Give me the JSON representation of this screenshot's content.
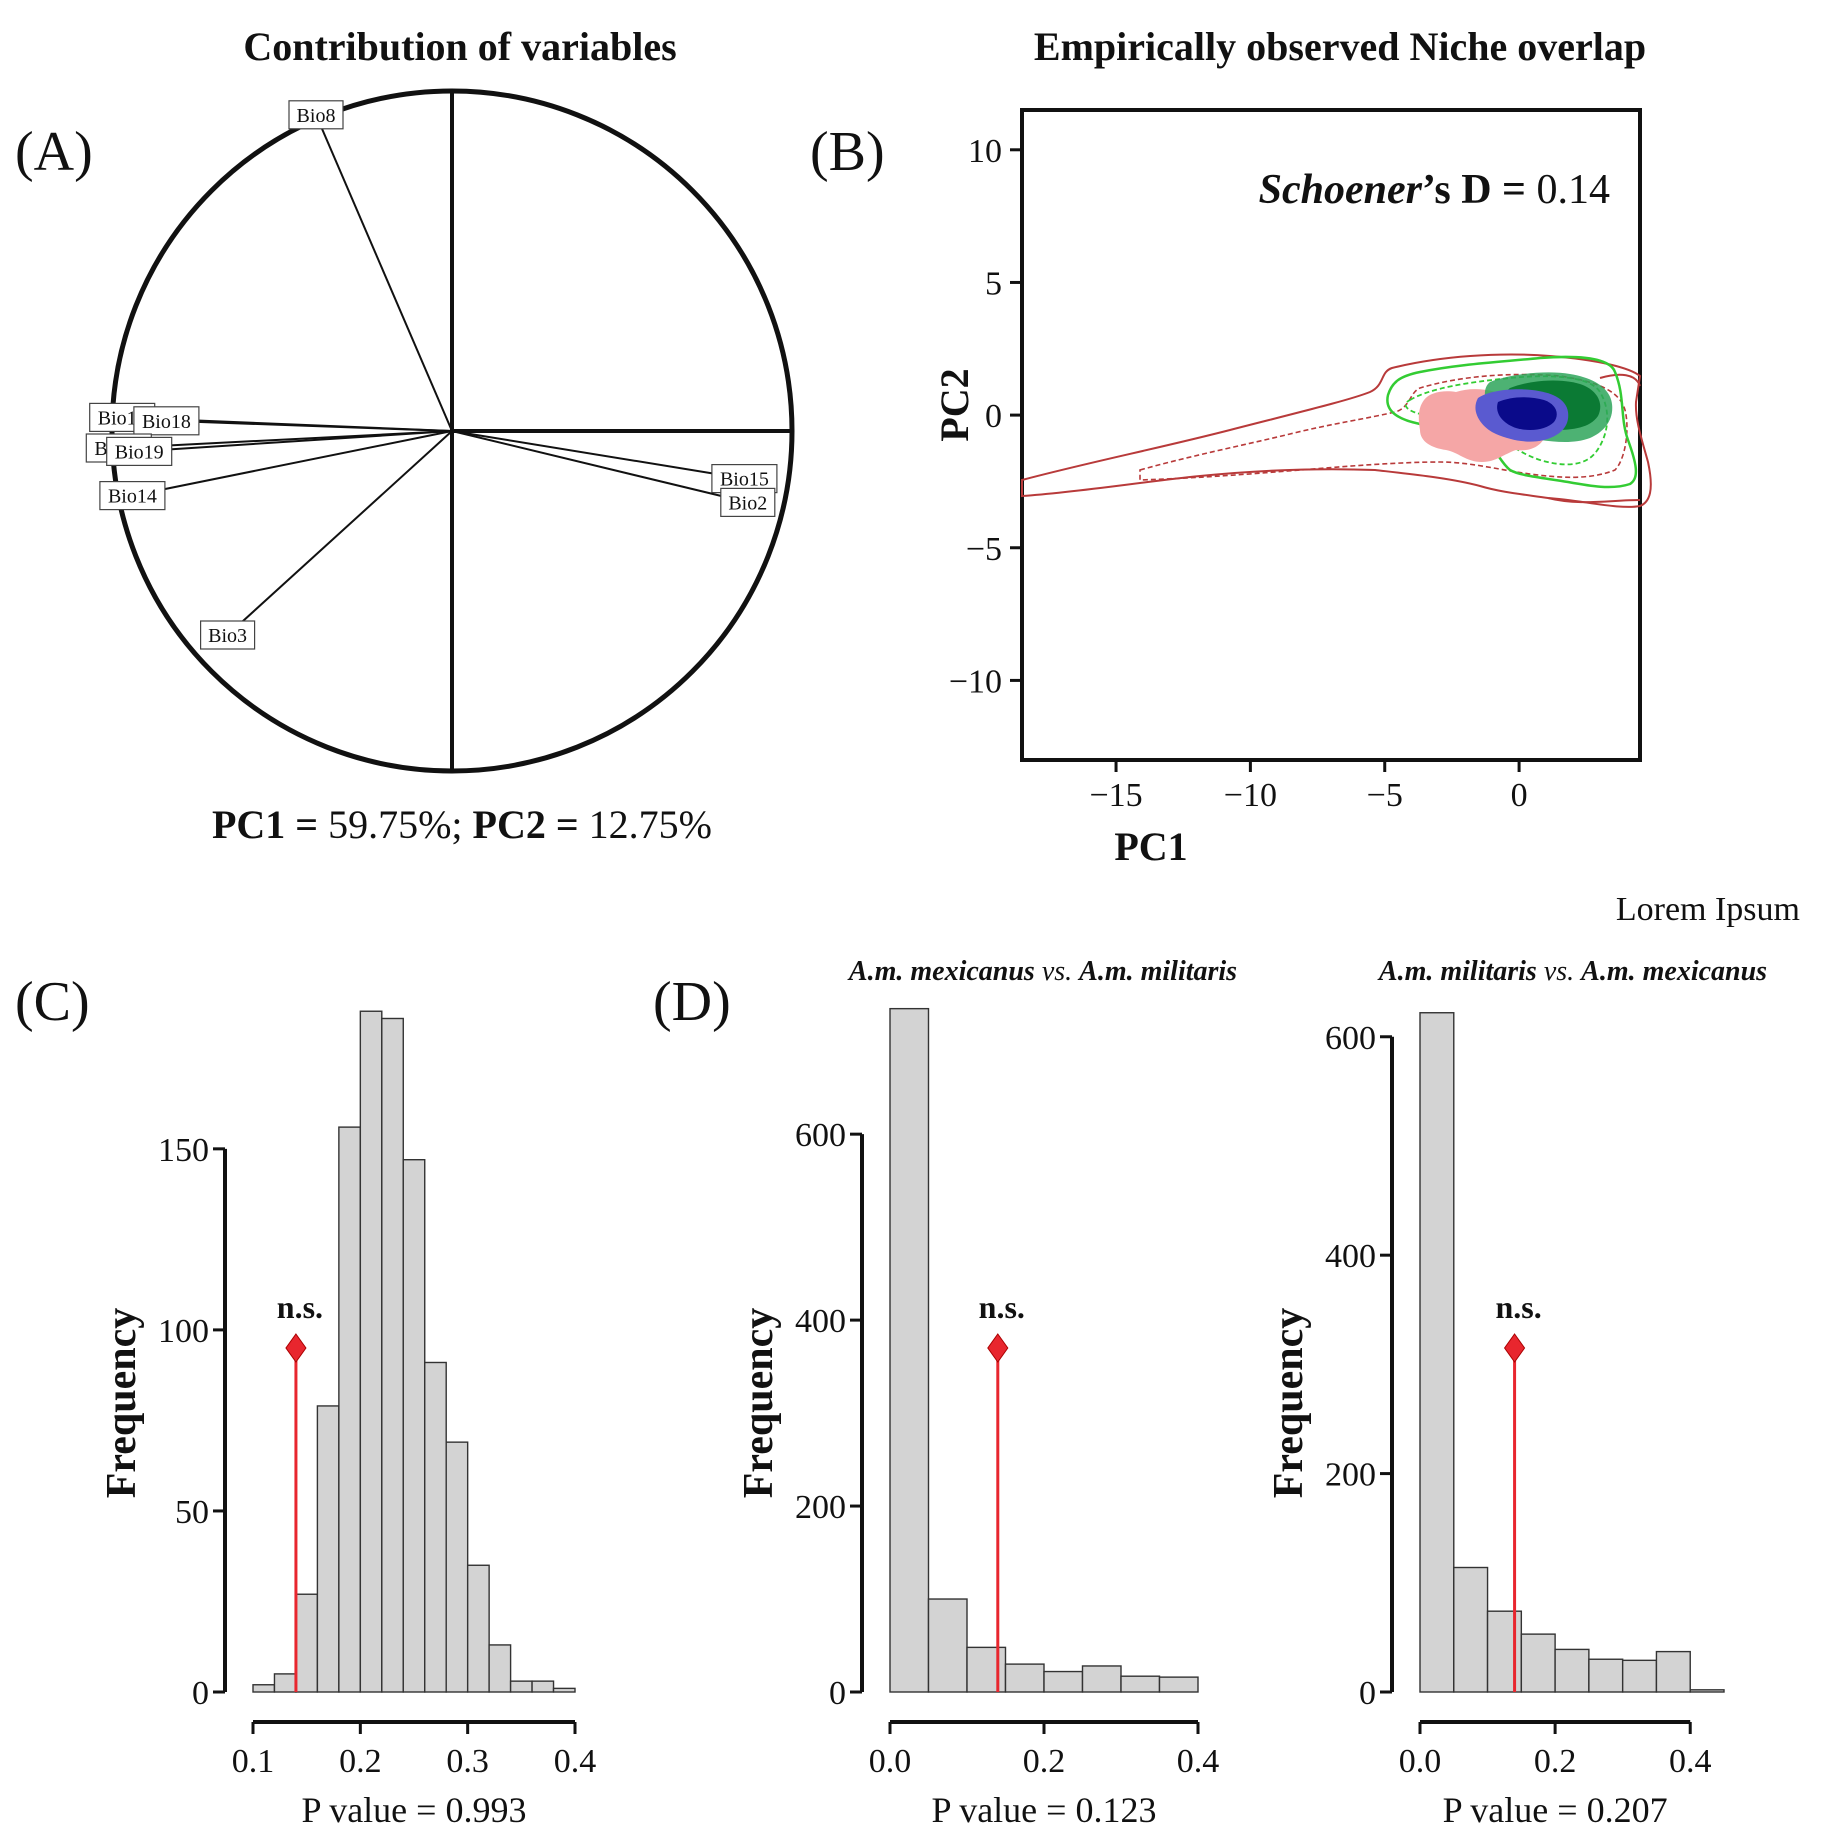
{
  "panels": {
    "A": {
      "letter": "(A)",
      "title": "Contribution of variables",
      "summary": {
        "pc1_label": "PC1 =",
        "pc1_value": "59.75%;",
        "pc2_label": "PC2 =",
        "pc2_value": "12.75%"
      }
    },
    "B": {
      "letter": "(B)",
      "title": "Empirically observed Niche overlap",
      "stat": {
        "name": "Schoener",
        "suffix": "’s D =",
        "value": "0.14"
      }
    },
    "C": {
      "letter": "(C)"
    },
    "D": {
      "letter": "(D)",
      "caption": "Lorem Ipsum"
    }
  },
  "colors": {
    "bar_fill": "#d3d3d3",
    "marker": "#e8262e",
    "red_contour": "#b83a3a",
    "green_contour": "#33cc33",
    "blue_density": "#0a0a8a",
    "green_density": "#118a3a",
    "pink_density": "#f5a6a6"
  },
  "chart_data": [
    {
      "type": "correlation_circle",
      "panel": "A",
      "title": "Contribution of variables",
      "variables": [
        {
          "name": "Bio8",
          "x": -0.4,
          "y": 0.93
        },
        {
          "name": "Bio13",
          "x": -0.97,
          "y": 0.04
        },
        {
          "name": "Bio18",
          "x": -0.84,
          "y": 0.03
        },
        {
          "name": "Bio12",
          "x": -0.98,
          "y": -0.05
        },
        {
          "name": "Bio19",
          "x": -0.92,
          "y": -0.06
        },
        {
          "name": "Bio14",
          "x": -0.94,
          "y": -0.19
        },
        {
          "name": "Bio15",
          "x": 0.86,
          "y": -0.14
        },
        {
          "name": "Bio2",
          "x": 0.87,
          "y": -0.21
        },
        {
          "name": "Bio3",
          "x": -0.66,
          "y": -0.6
        }
      ],
      "pc1_variance": "59.75%",
      "pc2_variance": "12.75%"
    },
    {
      "type": "niche_density",
      "panel": "B",
      "title": "Empirically observed Niche overlap",
      "xlabel": "PC1",
      "ylabel": "PC2",
      "xlim": [
        -18.5,
        4.5
      ],
      "ylim": [
        -13,
        11.5
      ],
      "xticks": [
        -15,
        -10,
        -5,
        0
      ],
      "yticks": [
        -10,
        -5,
        0,
        5,
        10
      ],
      "schoeners_d": 0.14
    },
    {
      "type": "bar",
      "panel": "C",
      "xlabel": "P value = 0.993",
      "ylabel": "Frequency",
      "bins": [
        [
          0.1,
          0.12
        ],
        [
          0.12,
          0.14
        ],
        [
          0.14,
          0.16
        ],
        [
          0.16,
          0.18
        ],
        [
          0.18,
          0.2
        ],
        [
          0.2,
          0.22
        ],
        [
          0.22,
          0.24
        ],
        [
          0.24,
          0.26
        ],
        [
          0.26,
          0.28
        ],
        [
          0.28,
          0.3
        ],
        [
          0.3,
          0.32
        ],
        [
          0.32,
          0.34
        ],
        [
          0.34,
          0.36
        ],
        [
          0.36,
          0.38
        ],
        [
          0.38,
          0.4
        ]
      ],
      "values": [
        2,
        5,
        27,
        79,
        156,
        188,
        186,
        147,
        91,
        69,
        35,
        13,
        3,
        3,
        1
      ],
      "xlim": [
        0.1,
        0.4
      ],
      "ylim": [
        0,
        190
      ],
      "xticks": [
        0.1,
        0.2,
        0.3,
        0.4
      ],
      "yticks": [
        0,
        50,
        100,
        150
      ],
      "observed": {
        "x": 0.14,
        "y": 95,
        "label": "n.s."
      }
    },
    {
      "type": "bar",
      "panel": "D1",
      "title": [
        {
          "t": "A.m. mexicanus",
          "b": true
        },
        {
          "t": " vs. ",
          "b": false
        },
        {
          "t": "A.m. militaris",
          "b": true
        }
      ],
      "xlabel": "P value = 0.123",
      "ylabel": "Frequency",
      "bins": [
        [
          0.0,
          0.05
        ],
        [
          0.05,
          0.1
        ],
        [
          0.1,
          0.15
        ],
        [
          0.15,
          0.2
        ],
        [
          0.2,
          0.25
        ],
        [
          0.25,
          0.3
        ],
        [
          0.3,
          0.35
        ],
        [
          0.35,
          0.4
        ]
      ],
      "values": [
        735,
        100,
        48,
        30,
        22,
        28,
        17,
        16
      ],
      "xlim": [
        0,
        0.4
      ],
      "ylim": [
        0,
        740
      ],
      "xticks": [
        0.0,
        0.2,
        0.4
      ],
      "yticks": [
        0,
        200,
        400,
        600
      ],
      "observed": {
        "x": 0.14,
        "y": 370,
        "label": "n.s."
      }
    },
    {
      "type": "bar",
      "panel": "D2",
      "title": [
        {
          "t": "A.m. militaris",
          "b": true
        },
        {
          "t": " vs. ",
          "b": false
        },
        {
          "t": "A.m. mexicanus",
          "b": true
        }
      ],
      "xlabel": "P value = 0.207",
      "ylabel": "Frequency",
      "bins": [
        [
          0.0,
          0.05
        ],
        [
          0.05,
          0.1
        ],
        [
          0.1,
          0.15
        ],
        [
          0.15,
          0.2
        ],
        [
          0.2,
          0.25
        ],
        [
          0.25,
          0.3
        ],
        [
          0.3,
          0.35
        ],
        [
          0.35,
          0.4
        ],
        [
          0.4,
          0.45
        ]
      ],
      "values": [
        622,
        114,
        74,
        53,
        39,
        30,
        29,
        37,
        2
      ],
      "xlim": [
        0,
        0.45
      ],
      "ylim": [
        0,
        630
      ],
      "xticks": [
        0.0,
        0.2,
        0.4
      ],
      "yticks": [
        0,
        200,
        400,
        600
      ],
      "observed": {
        "x": 0.14,
        "y": 315,
        "label": "n.s."
      }
    }
  ]
}
